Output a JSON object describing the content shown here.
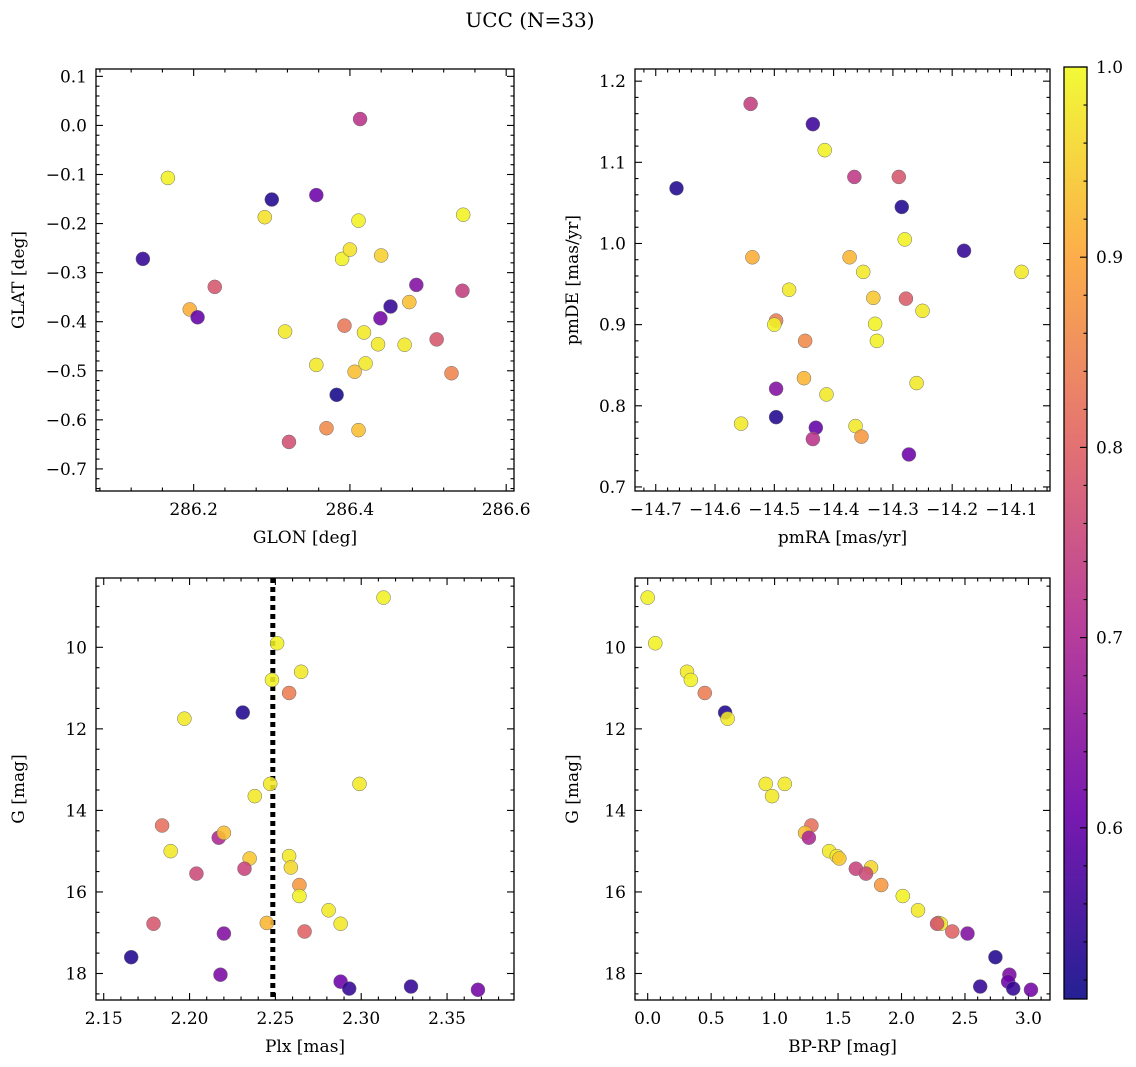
{
  "figure": {
    "title": "UCC (N=33)"
  },
  "colorbar": {
    "min": 0.51,
    "max": 1.0,
    "ticks": [
      "0.6",
      "0.7",
      "0.8",
      "0.9",
      "1.0"
    ],
    "colormap": "plasma",
    "colormap_stops": [
      "#0d0887",
      "#6a00a8",
      "#b12a90",
      "#e16462",
      "#fca636",
      "#f0f921"
    ]
  },
  "chart_data": [
    {
      "type": "scatter",
      "xlabel": "GLON [deg]",
      "ylabel": "GLAT [deg]",
      "xlim": [
        286.075,
        286.61
      ],
      "ylim": [
        -0.745,
        0.115
      ],
      "y_inverted": false,
      "xticks": [
        "286.2",
        "286.4",
        "286.6"
      ],
      "yticks": [
        "0.1",
        "0.0",
        "−0.1",
        "−0.2",
        "−0.3",
        "−0.4",
        "−0.5",
        "−0.6",
        "−0.7"
      ],
      "points": [
        {
          "x": 286.167,
          "y": -0.107,
          "c": 0.99
        },
        {
          "x": 286.135,
          "y": -0.272,
          "c": 0.55
        },
        {
          "x": 286.195,
          "y": -0.375,
          "c": 0.91
        },
        {
          "x": 286.205,
          "y": -0.391,
          "c": 0.6
        },
        {
          "x": 286.227,
          "y": -0.329,
          "c": 0.78
        },
        {
          "x": 286.291,
          "y": -0.187,
          "c": 0.97
        },
        {
          "x": 286.3,
          "y": -0.151,
          "c": 0.53
        },
        {
          "x": 286.317,
          "y": -0.42,
          "c": 0.98
        },
        {
          "x": 286.322,
          "y": -0.645,
          "c": 0.77
        },
        {
          "x": 286.357,
          "y": -0.142,
          "c": 0.61
        },
        {
          "x": 286.357,
          "y": -0.488,
          "c": 0.98
        },
        {
          "x": 286.37,
          "y": -0.617,
          "c": 0.86
        },
        {
          "x": 286.383,
          "y": -0.549,
          "c": 0.52
        },
        {
          "x": 286.39,
          "y": -0.272,
          "c": 0.99
        },
        {
          "x": 286.393,
          "y": -0.408,
          "c": 0.83
        },
        {
          "x": 286.4,
          "y": -0.253,
          "c": 0.97
        },
        {
          "x": 286.406,
          "y": -0.502,
          "c": 0.93
        },
        {
          "x": 286.411,
          "y": -0.194,
          "c": 0.99
        },
        {
          "x": 286.411,
          "y": -0.621,
          "c": 0.93
        },
        {
          "x": 286.413,
          "y": 0.013,
          "c": 0.72
        },
        {
          "x": 286.418,
          "y": -0.422,
          "c": 0.98
        },
        {
          "x": 286.42,
          "y": -0.485,
          "c": 0.98
        },
        {
          "x": 286.436,
          "y": -0.446,
          "c": 0.98
        },
        {
          "x": 286.439,
          "y": -0.393,
          "c": 0.62
        },
        {
          "x": 286.44,
          "y": -0.265,
          "c": 0.95
        },
        {
          "x": 286.452,
          "y": -0.369,
          "c": 0.55
        },
        {
          "x": 286.47,
          "y": -0.447,
          "c": 0.98
        },
        {
          "x": 286.476,
          "y": -0.36,
          "c": 0.93
        },
        {
          "x": 286.485,
          "y": -0.325,
          "c": 0.64
        },
        {
          "x": 286.511,
          "y": -0.436,
          "c": 0.78
        },
        {
          "x": 286.53,
          "y": -0.505,
          "c": 0.85
        },
        {
          "x": 286.544,
          "y": -0.337,
          "c": 0.74
        },
        {
          "x": 286.545,
          "y": -0.182,
          "c": 0.99
        }
      ]
    },
    {
      "type": "scatter",
      "xlabel": "pmRA [mas/yr]",
      "ylabel": "pmDE [mas/yr]",
      "xlim": [
        -14.735,
        -14.035
      ],
      "ylim": [
        0.695,
        1.215
      ],
      "y_inverted": false,
      "xticks": [
        "−14.7",
        "−14.6",
        "−14.5",
        "−14.4",
        "−14.3",
        "−14.2",
        "−14.1"
      ],
      "yticks": [
        "0.7",
        "0.8",
        "0.9",
        "1.0",
        "1.1",
        "1.2"
      ],
      "points": [
        {
          "x": -14.665,
          "y": 1.068,
          "c": 0.53
        },
        {
          "x": -14.54,
          "y": 1.172,
          "c": 0.74
        },
        {
          "x": -14.537,
          "y": 0.983,
          "c": 0.91
        },
        {
          "x": -14.435,
          "y": 1.147,
          "c": 0.56
        },
        {
          "x": -14.415,
          "y": 1.115,
          "c": 0.99
        },
        {
          "x": -14.365,
          "y": 1.082,
          "c": 0.73
        },
        {
          "x": -14.29,
          "y": 1.082,
          "c": 0.78
        },
        {
          "x": -14.285,
          "y": 1.045,
          "c": 0.53
        },
        {
          "x": -14.28,
          "y": 1.005,
          "c": 0.99
        },
        {
          "x": -14.18,
          "y": 0.991,
          "c": 0.55
        },
        {
          "x": -14.083,
          "y": 0.965,
          "c": 0.98
        },
        {
          "x": -14.475,
          "y": 0.943,
          "c": 0.98
        },
        {
          "x": -14.497,
          "y": 0.905,
          "c": 0.84
        },
        {
          "x": -14.5,
          "y": 0.9,
          "c": 0.99
        },
        {
          "x": -14.373,
          "y": 0.983,
          "c": 0.92
        },
        {
          "x": -14.35,
          "y": 0.965,
          "c": 0.98
        },
        {
          "x": -14.333,
          "y": 0.933,
          "c": 0.94
        },
        {
          "x": -14.33,
          "y": 0.901,
          "c": 0.99
        },
        {
          "x": -14.327,
          "y": 0.88,
          "c": 0.99
        },
        {
          "x": -14.278,
          "y": 0.932,
          "c": 0.79
        },
        {
          "x": -14.25,
          "y": 0.917,
          "c": 0.98
        },
        {
          "x": -14.26,
          "y": 0.828,
          "c": 0.98
        },
        {
          "x": -14.448,
          "y": 0.88,
          "c": 0.86
        },
        {
          "x": -14.45,
          "y": 0.834,
          "c": 0.92
        },
        {
          "x": -14.412,
          "y": 0.814,
          "c": 0.98
        },
        {
          "x": -14.497,
          "y": 0.821,
          "c": 0.64
        },
        {
          "x": -14.497,
          "y": 0.786,
          "c": 0.53
        },
        {
          "x": -14.556,
          "y": 0.778,
          "c": 0.98
        },
        {
          "x": -14.363,
          "y": 0.775,
          "c": 0.98
        },
        {
          "x": -14.353,
          "y": 0.762,
          "c": 0.88
        },
        {
          "x": -14.43,
          "y": 0.773,
          "c": 0.6
        },
        {
          "x": -14.435,
          "y": 0.759,
          "c": 0.72
        },
        {
          "x": -14.273,
          "y": 0.74,
          "c": 0.61
        }
      ]
    },
    {
      "type": "scatter",
      "xlabel": "Plx [mas]",
      "ylabel": "G [mag]",
      "xlim": [
        2.1455,
        2.389
      ],
      "ylim": [
        8.3,
        18.65
      ],
      "y_inverted": true,
      "xticks": [
        "2.15",
        "2.20",
        "2.25",
        "2.30",
        "2.35"
      ],
      "yticks": [
        "10",
        "12",
        "14",
        "16",
        "18"
      ],
      "vline": {
        "x": 2.2485,
        "style": "dotted"
      },
      "points": [
        {
          "x": 2.313,
          "y": 8.78,
          "c": 0.99
        },
        {
          "x": 2.251,
          "y": 9.9,
          "c": 0.99
        },
        {
          "x": 2.265,
          "y": 10.6,
          "c": 0.98
        },
        {
          "x": 2.248,
          "y": 10.8,
          "c": 0.99
        },
        {
          "x": 2.258,
          "y": 11.12,
          "c": 0.84
        },
        {
          "x": 2.197,
          "y": 11.75,
          "c": 0.98
        },
        {
          "x": 2.231,
          "y": 11.6,
          "c": 0.53
        },
        {
          "x": 2.299,
          "y": 13.35,
          "c": 0.98
        },
        {
          "x": 2.247,
          "y": 13.35,
          "c": 0.98
        },
        {
          "x": 2.238,
          "y": 13.65,
          "c": 0.98
        },
        {
          "x": 2.184,
          "y": 14.37,
          "c": 0.82
        },
        {
          "x": 2.217,
          "y": 14.67,
          "c": 0.7
        },
        {
          "x": 2.22,
          "y": 14.55,
          "c": 0.93
        },
        {
          "x": 2.189,
          "y": 15.0,
          "c": 0.98
        },
        {
          "x": 2.235,
          "y": 15.18,
          "c": 0.94
        },
        {
          "x": 2.258,
          "y": 15.12,
          "c": 0.98
        },
        {
          "x": 2.259,
          "y": 15.4,
          "c": 0.96
        },
        {
          "x": 2.232,
          "y": 15.43,
          "c": 0.75
        },
        {
          "x": 2.204,
          "y": 15.55,
          "c": 0.76
        },
        {
          "x": 2.264,
          "y": 15.83,
          "c": 0.88
        },
        {
          "x": 2.264,
          "y": 16.1,
          "c": 0.99
        },
        {
          "x": 2.281,
          "y": 16.45,
          "c": 0.98
        },
        {
          "x": 2.245,
          "y": 16.76,
          "c": 0.92
        },
        {
          "x": 2.288,
          "y": 16.78,
          "c": 0.98
        },
        {
          "x": 2.179,
          "y": 16.78,
          "c": 0.78
        },
        {
          "x": 2.267,
          "y": 16.97,
          "c": 0.8
        },
        {
          "x": 2.22,
          "y": 17.02,
          "c": 0.64
        },
        {
          "x": 2.166,
          "y": 17.6,
          "c": 0.53
        },
        {
          "x": 2.218,
          "y": 18.03,
          "c": 0.63
        },
        {
          "x": 2.288,
          "y": 18.2,
          "c": 0.61
        },
        {
          "x": 2.293,
          "y": 18.37,
          "c": 0.55
        },
        {
          "x": 2.329,
          "y": 18.32,
          "c": 0.55
        },
        {
          "x": 2.368,
          "y": 18.4,
          "c": 0.62
        }
      ]
    },
    {
      "type": "scatter",
      "xlabel": "BP-RP [mag]",
      "ylabel": "G [mag]",
      "xlim": [
        -0.1,
        3.17
      ],
      "ylim": [
        8.3,
        18.65
      ],
      "y_inverted": true,
      "xticks": [
        "0.0",
        "0.5",
        "1.0",
        "1.5",
        "2.0",
        "2.5",
        "3.0"
      ],
      "yticks": [
        "10",
        "12",
        "14",
        "16",
        "18"
      ],
      "points": [
        {
          "x": 0.0,
          "y": 8.78,
          "c": 0.99
        },
        {
          "x": 0.06,
          "y": 9.9,
          "c": 0.99
        },
        {
          "x": 0.31,
          "y": 10.6,
          "c": 0.98
        },
        {
          "x": 0.34,
          "y": 10.8,
          "c": 0.99
        },
        {
          "x": 0.45,
          "y": 11.12,
          "c": 0.84
        },
        {
          "x": 0.61,
          "y": 11.6,
          "c": 0.53
        },
        {
          "x": 0.63,
          "y": 11.75,
          "c": 0.98
        },
        {
          "x": 0.93,
          "y": 13.35,
          "c": 0.98
        },
        {
          "x": 1.08,
          "y": 13.35,
          "c": 0.98
        },
        {
          "x": 0.98,
          "y": 13.65,
          "c": 0.98
        },
        {
          "x": 1.29,
          "y": 14.37,
          "c": 0.82
        },
        {
          "x": 1.24,
          "y": 14.55,
          "c": 0.93
        },
        {
          "x": 1.27,
          "y": 14.67,
          "c": 0.7
        },
        {
          "x": 1.43,
          "y": 15.0,
          "c": 0.98
        },
        {
          "x": 1.49,
          "y": 15.12,
          "c": 0.98
        },
        {
          "x": 1.51,
          "y": 15.18,
          "c": 0.94
        },
        {
          "x": 1.64,
          "y": 15.43,
          "c": 0.75
        },
        {
          "x": 1.76,
          "y": 15.4,
          "c": 0.96
        },
        {
          "x": 1.72,
          "y": 15.55,
          "c": 0.76
        },
        {
          "x": 1.84,
          "y": 15.83,
          "c": 0.88
        },
        {
          "x": 2.01,
          "y": 16.1,
          "c": 0.99
        },
        {
          "x": 2.13,
          "y": 16.45,
          "c": 0.98
        },
        {
          "x": 2.29,
          "y": 16.76,
          "c": 0.92
        },
        {
          "x": 2.31,
          "y": 16.78,
          "c": 0.98
        },
        {
          "x": 2.28,
          "y": 16.78,
          "c": 0.78
        },
        {
          "x": 2.4,
          "y": 16.97,
          "c": 0.8
        },
        {
          "x": 2.52,
          "y": 17.02,
          "c": 0.64
        },
        {
          "x": 2.74,
          "y": 17.6,
          "c": 0.53
        },
        {
          "x": 2.85,
          "y": 18.03,
          "c": 0.63
        },
        {
          "x": 2.84,
          "y": 18.2,
          "c": 0.61
        },
        {
          "x": 2.88,
          "y": 18.37,
          "c": 0.55
        },
        {
          "x": 2.62,
          "y": 18.32,
          "c": 0.55
        },
        {
          "x": 3.02,
          "y": 18.4,
          "c": 0.62
        }
      ]
    }
  ]
}
